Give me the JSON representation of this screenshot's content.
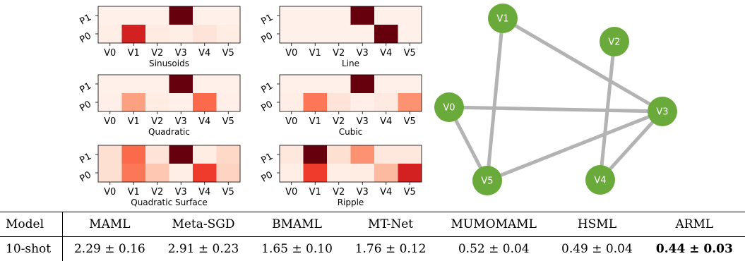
{
  "heatmap_panels": [
    {
      "title": "Sinusoids",
      "rows": [
        "P1",
        "P0"
      ],
      "columns": [
        "V0",
        "V1",
        "V2",
        "V3",
        "V4",
        "V5"
      ],
      "values": [
        [
          0.03,
          0.03,
          0.03,
          1.0,
          0.03,
          0.03
        ],
        [
          0.05,
          0.82,
          0.07,
          0.05,
          0.12,
          0.06
        ]
      ]
    },
    {
      "title": "Line",
      "rows": [
        "P1",
        "P0"
      ],
      "columns": [
        "V0",
        "V1",
        "V2",
        "V3",
        "V4",
        "V5"
      ],
      "values": [
        [
          0.03,
          0.03,
          0.03,
          1.0,
          0.03,
          0.03
        ],
        [
          0.03,
          0.03,
          0.03,
          0.03,
          1.0,
          0.03
        ]
      ]
    },
    {
      "title": "Quadratic",
      "rows": [
        "P1",
        "P0"
      ],
      "columns": [
        "V0",
        "V1",
        "V2",
        "V3",
        "V4",
        "V5"
      ],
      "values": [
        [
          0.03,
          0.03,
          0.03,
          1.0,
          0.03,
          0.03
        ],
        [
          0.04,
          0.4,
          0.06,
          0.03,
          0.6,
          0.04
        ]
      ]
    },
    {
      "title": "Cubic",
      "rows": [
        "P1",
        "P0"
      ],
      "columns": [
        "V0",
        "V1",
        "V2",
        "V3",
        "V4",
        "V5"
      ],
      "values": [
        [
          0.03,
          0.03,
          0.03,
          1.0,
          0.03,
          0.03
        ],
        [
          0.05,
          0.55,
          0.12,
          0.04,
          0.08,
          0.45
        ]
      ]
    },
    {
      "title": "Quadratic Surface",
      "rows": [
        "P1",
        "P0"
      ],
      "columns": [
        "V0",
        "V1",
        "V2",
        "V3",
        "V4",
        "V5"
      ],
      "values": [
        [
          0.15,
          0.6,
          0.12,
          1.0,
          0.06,
          0.18
        ],
        [
          0.15,
          0.55,
          0.25,
          0.05,
          0.72,
          0.2
        ]
      ]
    },
    {
      "title": "Ripple",
      "rows": [
        "P1",
        "P0"
      ],
      "columns": [
        "V0",
        "V1",
        "V2",
        "V3",
        "V4",
        "V5"
      ],
      "values": [
        [
          0.1,
          1.0,
          0.15,
          0.45,
          0.1,
          0.1
        ],
        [
          0.05,
          0.72,
          0.05,
          0.06,
          0.3,
          0.82
        ]
      ]
    }
  ],
  "graph": {
    "node_color": "#6aaa3a",
    "edge_color": "#b3b3b3",
    "nodes": [
      {
        "id": "V0",
        "label": "V0"
      },
      {
        "id": "V1",
        "label": "V1"
      },
      {
        "id": "V2",
        "label": "V2"
      },
      {
        "id": "V3",
        "label": "V3"
      },
      {
        "id": "V4",
        "label": "V4"
      },
      {
        "id": "V5",
        "label": "V5"
      }
    ],
    "edges": [
      [
        "V1",
        "V3"
      ],
      [
        "V1",
        "V5"
      ],
      [
        "V0",
        "V3"
      ],
      [
        "V0",
        "V5"
      ],
      [
        "V2",
        "V4"
      ],
      [
        "V3",
        "V5"
      ],
      [
        "V3",
        "V4"
      ]
    ]
  },
  "table": {
    "header": [
      "Model",
      "MAML",
      "Meta-SGD",
      "BMAML",
      "MT-Net",
      "MUMOMAML",
      "HSML",
      "ARML"
    ],
    "rows": [
      {
        "label": "10-shot",
        "cells": [
          "2.29 ± 0.16",
          "2.91 ± 0.23",
          "1.65 ± 0.10",
          "1.76 ± 0.12",
          "0.52 ± 0.04",
          "0.49 ± 0.04",
          "0.44 ± 0.03"
        ]
      }
    ]
  }
}
